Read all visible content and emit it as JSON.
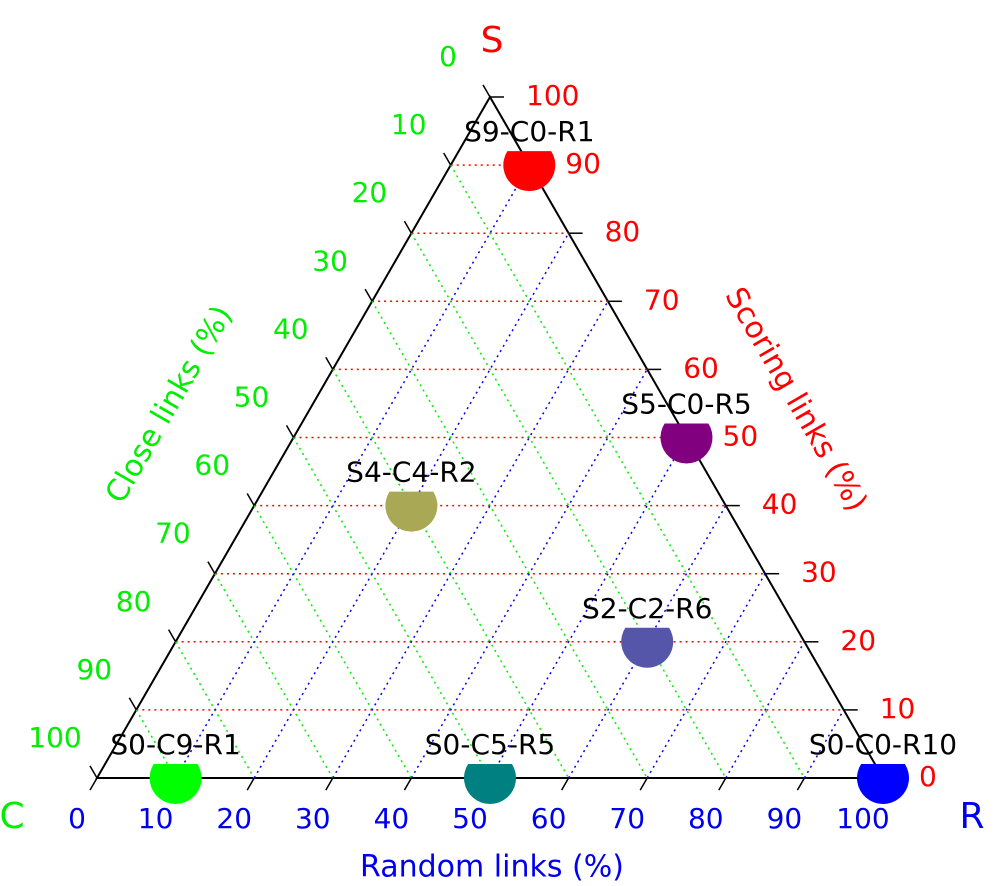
{
  "chart_data": {
    "type": "ternary",
    "grid": true,
    "axes": [
      {
        "name": "S",
        "title": "Scoring links (%)",
        "color": "#ff0000",
        "lim": [
          0,
          100
        ],
        "ticks": [
          0,
          10,
          20,
          30,
          40,
          50,
          60,
          70,
          80,
          90,
          100
        ]
      },
      {
        "name": "C",
        "title": "Close links (%)",
        "color": "#00ee00",
        "lim": [
          0,
          100
        ],
        "ticks": [
          0,
          10,
          20,
          30,
          40,
          50,
          60,
          70,
          80,
          90,
          100
        ]
      },
      {
        "name": "R",
        "title": "Random links (%)",
        "color": "#0000ee",
        "lim": [
          0,
          100
        ],
        "ticks": [
          0,
          10,
          20,
          30,
          40,
          50,
          60,
          70,
          80,
          90,
          100
        ]
      }
    ],
    "points": [
      {
        "label": "S9-C0-R1",
        "s": 90,
        "c": 0,
        "r": 10,
        "color": "#ff0000"
      },
      {
        "label": "S5-C0-R5",
        "s": 50,
        "c": 0,
        "r": 50,
        "color": "#800080"
      },
      {
        "label": "S4-C4-R2",
        "s": 40,
        "c": 40,
        "r": 20,
        "color": "#a8a855"
      },
      {
        "label": "S2-C2-R6",
        "s": 20,
        "c": 20,
        "r": 60,
        "color": "#5555aa"
      },
      {
        "label": "S0-C9-R1",
        "s": 0,
        "c": 90,
        "r": 10,
        "color": "#00ff00"
      },
      {
        "label": "S0-C5-R5",
        "s": 0,
        "c": 50,
        "r": 50,
        "color": "#008080"
      },
      {
        "label": "S0-C0-R10",
        "s": 0,
        "c": 0,
        "r": 100,
        "color": "#0000ff"
      }
    ]
  }
}
